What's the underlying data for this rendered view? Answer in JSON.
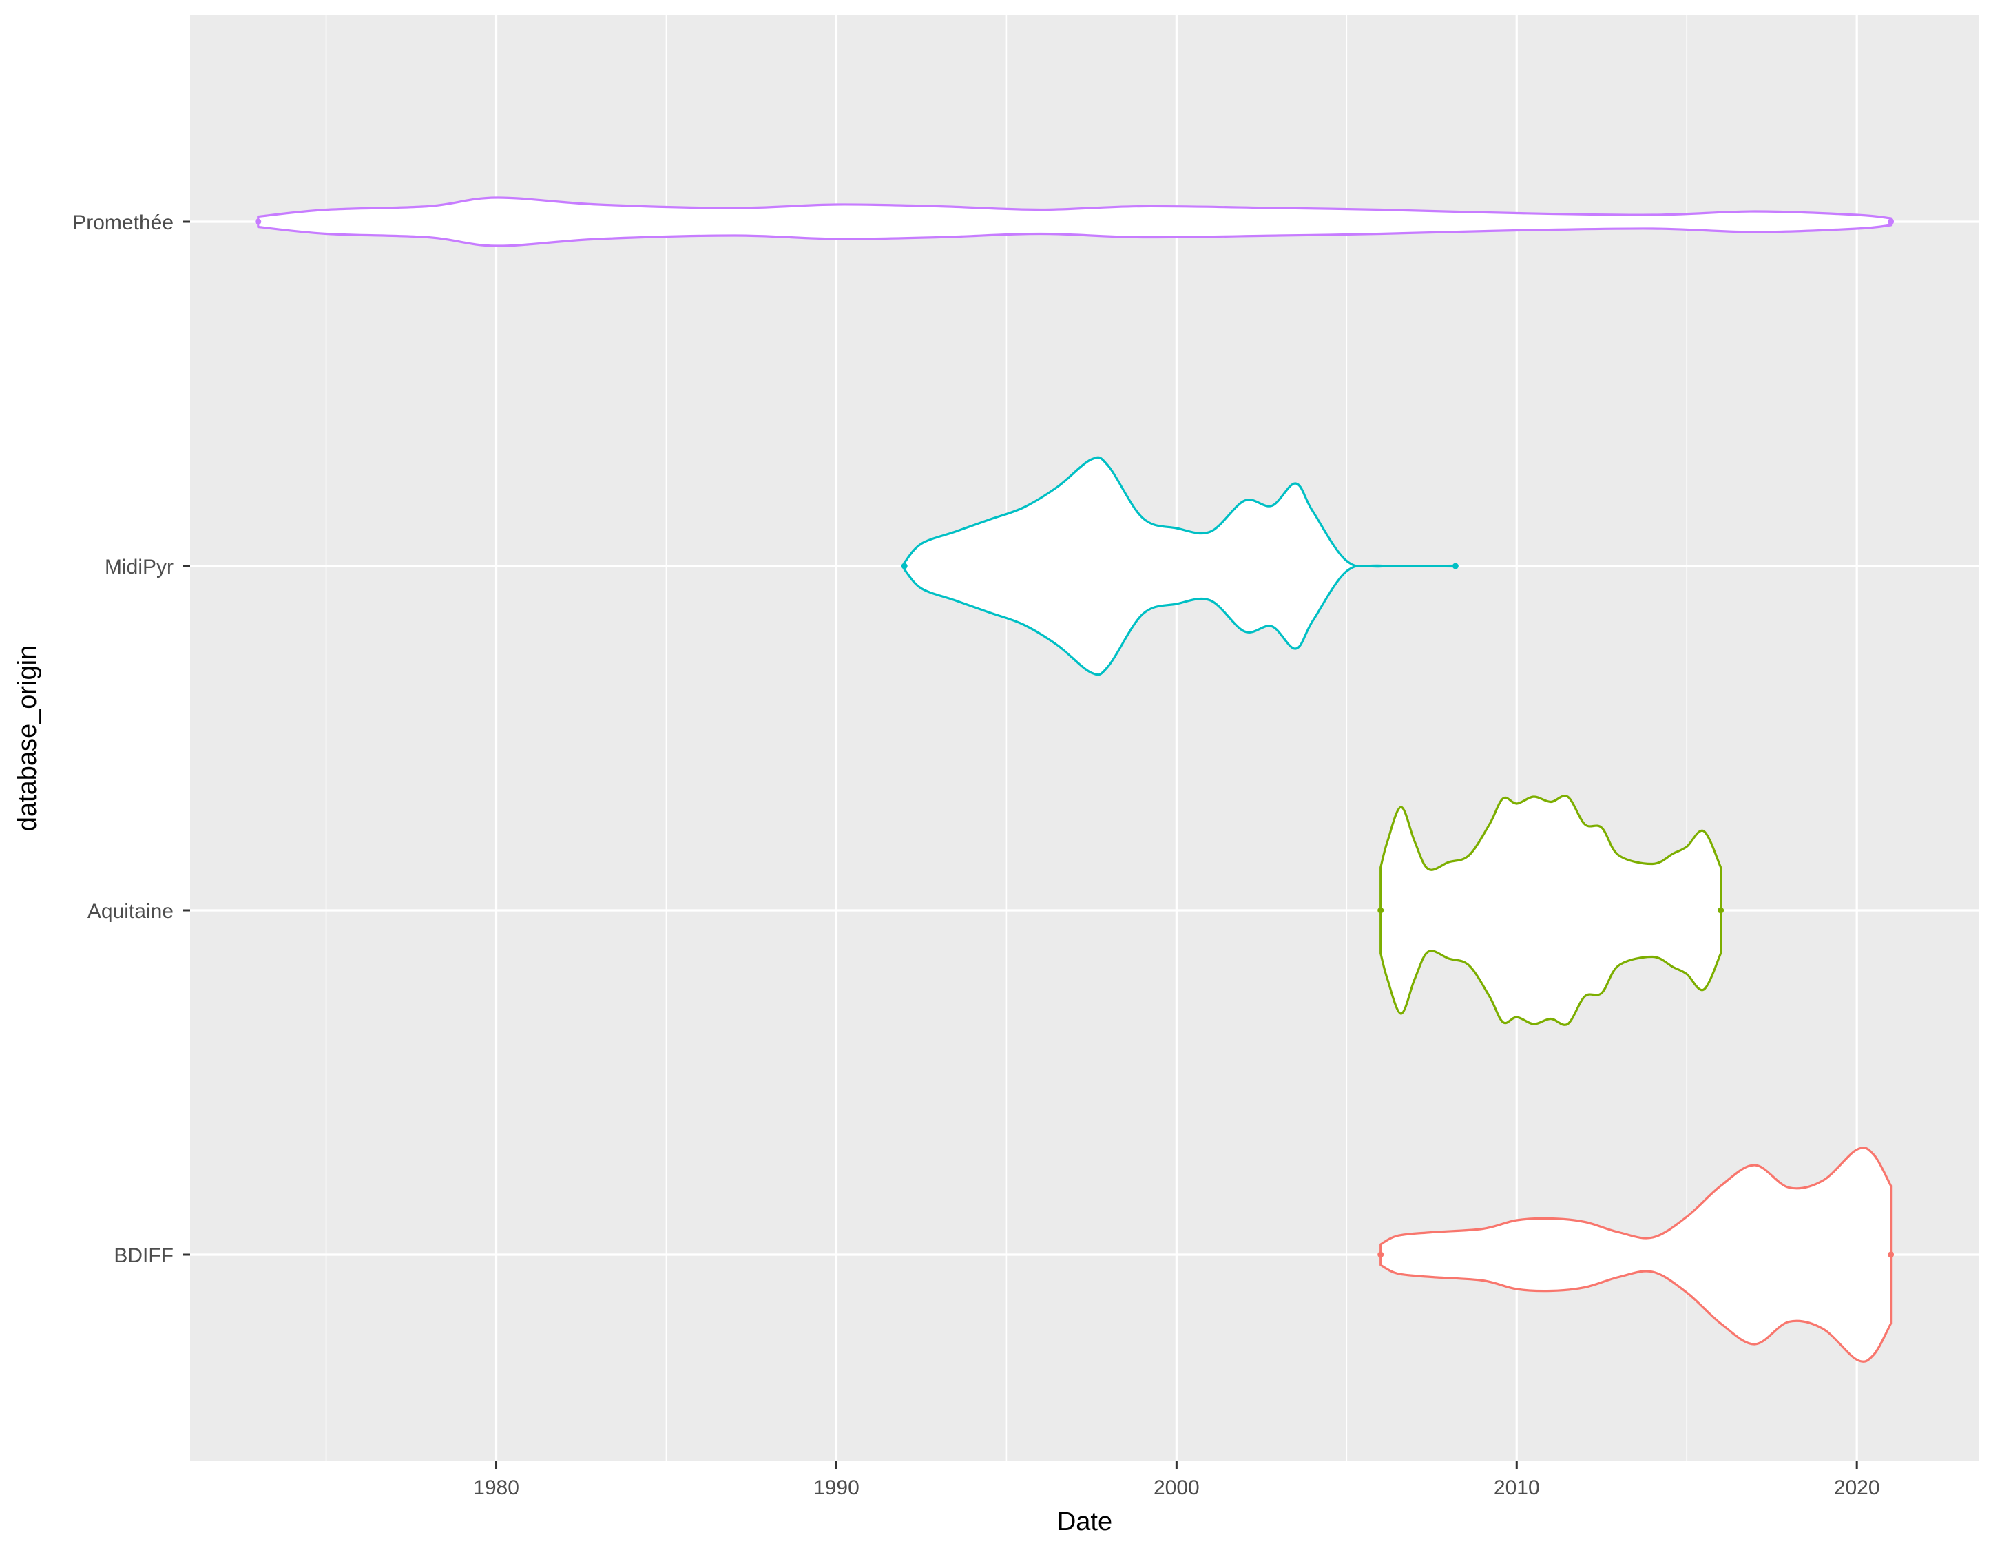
{
  "chart_data": {
    "type": "violin",
    "orientation": "horizontal",
    "xlabel": "Date",
    "ylabel": "database_origin",
    "xlim": [
      1971.0,
      2023.6
    ],
    "x_ticks": [
      1980,
      1990,
      2000,
      2010,
      2020
    ],
    "x_minor_ticks": [
      1975,
      1985,
      1995,
      2005,
      2015
    ],
    "categories": [
      "BDIFF",
      "Aquitaine",
      "MidiPyr",
      "Promethée"
    ],
    "grid": true,
    "legend": "none",
    "panel_background": "#ebebeb",
    "grid_color": "#ffffff",
    "series": [
      {
        "category": "BDIFF",
        "color": "#F8766D",
        "range": [
          2006.0,
          2021.0
        ],
        "profile": [
          [
            2006.0,
            0.06
          ],
          [
            2006.5,
            0.11
          ],
          [
            2007.5,
            0.13
          ],
          [
            2009.0,
            0.15
          ],
          [
            2010.0,
            0.2
          ],
          [
            2011.0,
            0.21
          ],
          [
            2012.0,
            0.19
          ],
          [
            2013.0,
            0.13
          ],
          [
            2014.0,
            0.1
          ],
          [
            2015.0,
            0.22
          ],
          [
            2016.0,
            0.4
          ],
          [
            2017.0,
            0.52
          ],
          [
            2018.0,
            0.39
          ],
          [
            2019.0,
            0.43
          ],
          [
            2020.0,
            0.61
          ],
          [
            2020.5,
            0.58
          ],
          [
            2021.0,
            0.4
          ]
        ]
      },
      {
        "category": "Aquitaine",
        "color": "#7CAE00",
        "range": [
          2006.0,
          2016.0
        ],
        "profile": [
          [
            2006.0,
            0.25
          ],
          [
            2006.2,
            0.4
          ],
          [
            2006.6,
            0.6
          ],
          [
            2007.0,
            0.4
          ],
          [
            2007.4,
            0.24
          ],
          [
            2008.0,
            0.28
          ],
          [
            2008.6,
            0.32
          ],
          [
            2009.2,
            0.5
          ],
          [
            2009.6,
            0.65
          ],
          [
            2010.0,
            0.62
          ],
          [
            2010.5,
            0.66
          ],
          [
            2011.0,
            0.63
          ],
          [
            2011.5,
            0.66
          ],
          [
            2012.0,
            0.5
          ],
          [
            2012.5,
            0.48
          ],
          [
            2013.0,
            0.32
          ],
          [
            2014.0,
            0.27
          ],
          [
            2014.6,
            0.33
          ],
          [
            2015.0,
            0.37
          ],
          [
            2015.5,
            0.46
          ],
          [
            2016.0,
            0.25
          ]
        ]
      },
      {
        "category": "MidiPyr",
        "color": "#00BFC4",
        "range": [
          1992.0,
          2008.2
        ],
        "profile": [
          [
            1992.0,
            0.02
          ],
          [
            1992.5,
            0.13
          ],
          [
            1993.5,
            0.2
          ],
          [
            1994.5,
            0.27
          ],
          [
            1995.5,
            0.34
          ],
          [
            1996.5,
            0.46
          ],
          [
            1997.5,
            0.62
          ],
          [
            1998.0,
            0.58
          ],
          [
            1999.0,
            0.28
          ],
          [
            2000.0,
            0.22
          ],
          [
            2001.0,
            0.2
          ],
          [
            2002.0,
            0.38
          ],
          [
            2002.8,
            0.35
          ],
          [
            2003.5,
            0.48
          ],
          [
            2004.0,
            0.32
          ],
          [
            2005.0,
            0.03
          ],
          [
            2006.0,
            0.002
          ],
          [
            2008.2,
            0.002
          ]
        ]
      },
      {
        "category": "Promethée",
        "color": "#C77CFF",
        "range": [
          1973.0,
          2021.0
        ],
        "profile": [
          [
            1973.0,
            0.03
          ],
          [
            1975.0,
            0.07
          ],
          [
            1978.0,
            0.09
          ],
          [
            1980.0,
            0.14
          ],
          [
            1983.0,
            0.1
          ],
          [
            1987.0,
            0.08
          ],
          [
            1990.0,
            0.1
          ],
          [
            1993.0,
            0.09
          ],
          [
            1996.0,
            0.07
          ],
          [
            1999.0,
            0.09
          ],
          [
            2003.0,
            0.08
          ],
          [
            2006.0,
            0.07
          ],
          [
            2010.0,
            0.05
          ],
          [
            2014.0,
            0.04
          ],
          [
            2017.0,
            0.06
          ],
          [
            2020.0,
            0.04
          ],
          [
            2021.0,
            0.02
          ]
        ]
      }
    ]
  }
}
